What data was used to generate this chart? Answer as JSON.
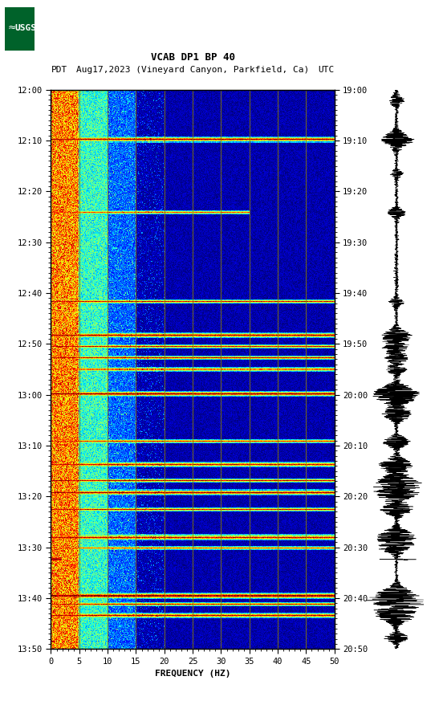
{
  "title_line1": "VCAB DP1 BP 40",
  "title_line2_pdt": "PDT",
  "title_line2_mid": "Aug17,2023 (Vineyard Canyon, Parkfield, Ca)",
  "title_line2_utc": "UTC",
  "xlabel": "FREQUENCY (HZ)",
  "left_yticks": [
    "12:00",
    "12:10",
    "12:20",
    "12:30",
    "12:40",
    "12:50",
    "13:00",
    "13:10",
    "13:20",
    "13:30",
    "13:40",
    "13:50"
  ],
  "right_yticks": [
    "19:00",
    "19:10",
    "19:20",
    "19:30",
    "19:40",
    "19:50",
    "20:00",
    "20:10",
    "20:20",
    "20:30",
    "20:40",
    "20:50"
  ],
  "xticks": [
    0,
    5,
    10,
    15,
    20,
    25,
    30,
    35,
    40,
    45,
    50
  ],
  "freq_min": 0,
  "freq_max": 50,
  "n_time": 660,
  "n_freq": 500,
  "vertical_lines_freq": [
    5,
    10,
    15,
    20,
    25,
    30,
    35,
    40,
    45
  ],
  "vline_color": "#8B8000",
  "bg_color": "white",
  "usgs_green": "#00622A",
  "spectrogram_cmap": "jet",
  "figure_width": 5.52,
  "figure_height": 8.93
}
